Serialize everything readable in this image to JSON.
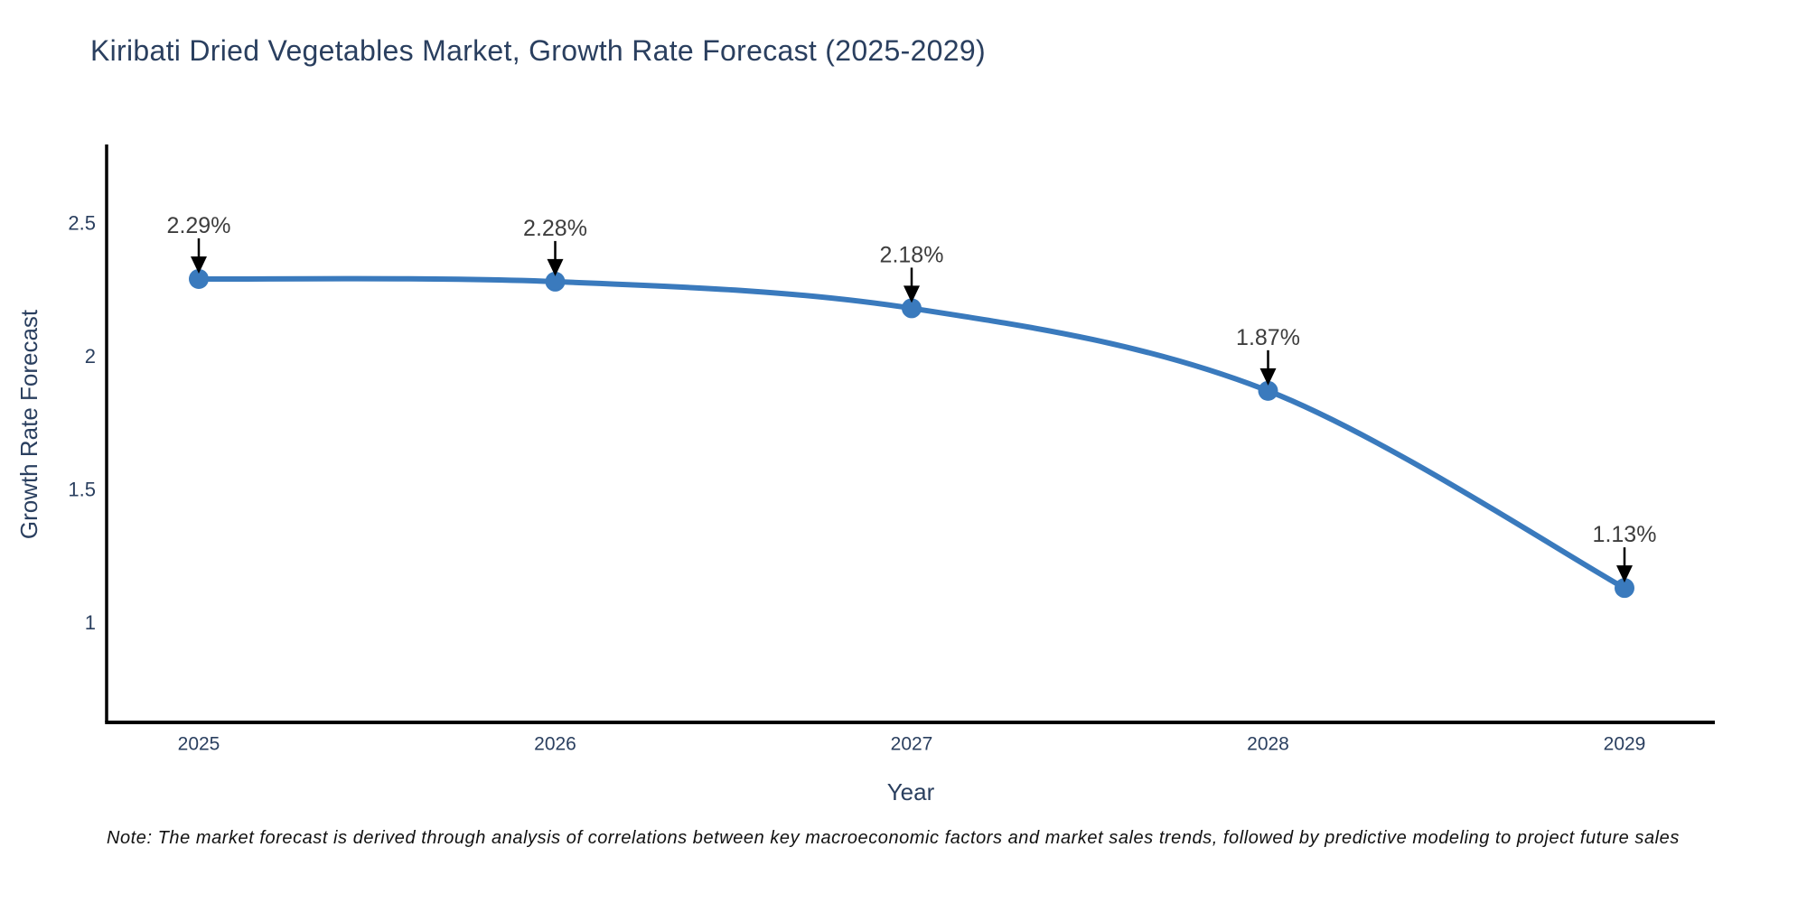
{
  "title": "Kiribati Dried Vegetables Market, Growth Rate Forecast (2025-2029)",
  "note": "Note: The market forecast is derived through analysis of correlations between key macroeconomic factors and market sales trends, followed by predictive modeling to project future sales",
  "chart_data": {
    "type": "line",
    "title": "Kiribati Dried Vegetables Market, Growth Rate Forecast (2025-2029)",
    "x": [
      2025,
      2026,
      2027,
      2028,
      2029
    ],
    "xticks": [
      "2025",
      "2026",
      "2027",
      "2028",
      "2029"
    ],
    "series": [
      {
        "name": "Growth Rate Forecast",
        "values": [
          2.29,
          2.28,
          2.18,
          1.87,
          1.13
        ]
      }
    ],
    "point_labels": [
      "2.29%",
      "2.28%",
      "2.18%",
      "1.87%",
      "1.13%"
    ],
    "xlabel": "Year",
    "ylabel": "Growth Rate Forecast",
    "yticks": [
      2.5,
      2,
      1.5,
      1
    ],
    "ylim": [
      0.62,
      2.79
    ],
    "xlim_categories": [
      "2025",
      "2029"
    ],
    "grid": false,
    "legend": "none",
    "line_shape": "spline",
    "annotations_style": "value above point with down arrow"
  },
  "colors": {
    "line": "#3a7abd",
    "marker": "#3a7abd",
    "arrow": "#000000",
    "axis_line": "#000000",
    "title_text": "#2a3f5f",
    "axis_text": "#2a3f5f",
    "annotation_text": "#3d3d3d",
    "note_text": "#111111",
    "background": "#ffffff"
  }
}
